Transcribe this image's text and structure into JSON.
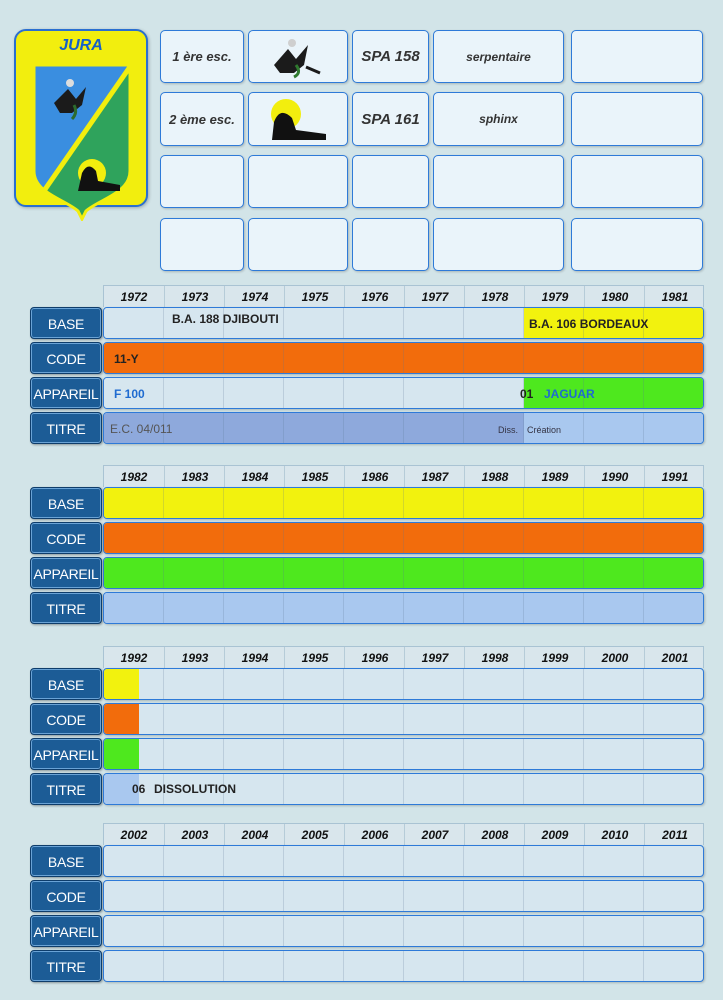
{
  "unit": {
    "name": "JURA"
  },
  "squadrons": [
    {
      "esc": "1 ère esc.",
      "icon": "serpentaire-bird-emblem",
      "spa": "SPA 158",
      "name": "serpentaire"
    },
    {
      "esc": "2 ème esc.",
      "icon": "sphinx-emblem",
      "spa": "SPA 161",
      "name": "sphinx"
    }
  ],
  "row_labels": {
    "base": "BASE",
    "code": "CODE",
    "appareil": "APPAREIL",
    "titre": "TITRE"
  },
  "periods": [
    {
      "years": [
        "1972",
        "1973",
        "1974",
        "1975",
        "1976",
        "1977",
        "1978",
        "1979",
        "1980",
        "1981"
      ],
      "base": {
        "segments": [
          {
            "from": 0,
            "to": 7,
            "color": "#d6e6ef"
          },
          {
            "from": 7,
            "to": 10,
            "color": "#f2f20e"
          }
        ],
        "texts": [
          "B.A. 188 DJIBOUTI",
          "B.A. 106 BORDEAUX"
        ]
      },
      "code": {
        "segments": [
          {
            "from": 0,
            "to": 10,
            "color": "#f26c0c"
          }
        ],
        "texts": [
          "11-Y"
        ]
      },
      "appareil": {
        "segments": [
          {
            "from": 0,
            "to": 7,
            "color": "#d6e6ef"
          },
          {
            "from": 7,
            "to": 10,
            "color": "#4ee81e"
          }
        ],
        "texts": [
          "F 100",
          "01",
          "JAGUAR"
        ]
      },
      "titre": {
        "segments": [
          {
            "from": 0,
            "to": 7,
            "color": "#8ea9dc"
          },
          {
            "from": 7,
            "to": 10,
            "color": "#a9c8ef"
          }
        ],
        "texts": [
          "E.C. 04/011",
          "Diss.",
          "Création"
        ]
      }
    },
    {
      "years": [
        "1982",
        "1983",
        "1984",
        "1985",
        "1986",
        "1987",
        "1988",
        "1989",
        "1990",
        "1991"
      ],
      "base": {
        "segments": [
          {
            "from": 0,
            "to": 10,
            "color": "#f2f20e"
          }
        ],
        "texts": []
      },
      "code": {
        "segments": [
          {
            "from": 0,
            "to": 10,
            "color": "#f26c0c"
          }
        ],
        "texts": []
      },
      "appareil": {
        "segments": [
          {
            "from": 0,
            "to": 10,
            "color": "#4ee81e"
          }
        ],
        "texts": []
      },
      "titre": {
        "segments": [
          {
            "from": 0,
            "to": 10,
            "color": "#a9c8ef"
          }
        ],
        "texts": []
      }
    },
    {
      "years": [
        "1992",
        "1993",
        "1994",
        "1995",
        "1996",
        "1997",
        "1998",
        "1999",
        "2000",
        "2001"
      ],
      "base": {
        "segments": [
          {
            "from": 0,
            "to": 0.58,
            "color": "#f2f20e"
          }
        ],
        "texts": []
      },
      "code": {
        "segments": [
          {
            "from": 0,
            "to": 0.58,
            "color": "#f26c0c"
          }
        ],
        "texts": []
      },
      "appareil": {
        "segments": [
          {
            "from": 0,
            "to": 0.58,
            "color": "#4ee81e"
          }
        ],
        "texts": []
      },
      "titre": {
        "segments": [
          {
            "from": 0,
            "to": 0.58,
            "color": "#a9c8ef"
          }
        ],
        "texts": [
          "06",
          "DISSOLUTION"
        ]
      }
    },
    {
      "years": [
        "2002",
        "2003",
        "2004",
        "2005",
        "2006",
        "2007",
        "2008",
        "2009",
        "2010",
        "2011"
      ],
      "base": {
        "segments": [],
        "texts": []
      },
      "code": {
        "segments": [],
        "texts": []
      },
      "appareil": {
        "segments": [],
        "texts": []
      },
      "titre": {
        "segments": [],
        "texts": []
      }
    }
  ]
}
